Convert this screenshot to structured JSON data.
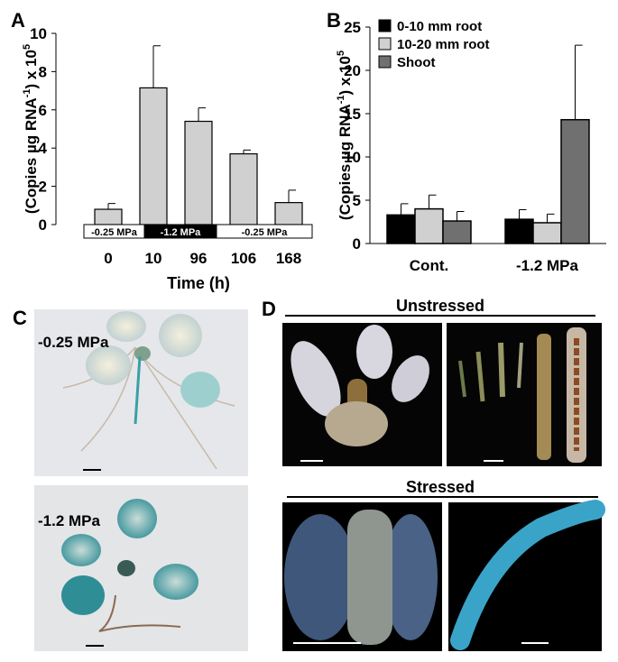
{
  "chart_data": [
    {
      "type": "bar",
      "panel": "A",
      "y_label": [
        "(Copies  µg RNA",
        "-1",
        ") x 10",
        "5"
      ],
      "x_label": "Time (h)",
      "categories": [
        "0",
        "10",
        "96",
        "106",
        "168"
      ],
      "values": [
        0.8,
        7.15,
        5.4,
        3.7,
        1.15
      ],
      "errors": [
        0.3,
        2.2,
        0.7,
        0.2,
        0.65
      ],
      "color": "#d0d0d0",
      "treatments": [
        "-0.25 MPa",
        "-1.2 MPa",
        "-0.25 MPa"
      ],
      "ylim": [
        0,
        10
      ],
      "yticks": [
        0,
        2,
        4,
        6,
        8,
        10
      ]
    },
    {
      "type": "grouped-bar",
      "panel": "B",
      "y_label": [
        "(Copies  µg RNA",
        "-1",
        ") x 10",
        "5"
      ],
      "categories": [
        "Cont.",
        "-1.2 MPa"
      ],
      "series": [
        {
          "name": "0-10 mm root",
          "color": "#000000",
          "values": [
            3.3,
            2.8
          ],
          "errors": [
            1.3,
            1.1
          ]
        },
        {
          "name": "10-20 mm root",
          "color": "#d0d0d0",
          "values": [
            4.0,
            2.4
          ],
          "errors": [
            1.6,
            1.0
          ]
        },
        {
          "name": "Shoot",
          "color": "#707070",
          "values": [
            2.6,
            14.3
          ],
          "errors": [
            1.1,
            8.6
          ]
        }
      ],
      "legend": "top-left",
      "ylim": [
        0,
        25
      ],
      "yticks": [
        0,
        5,
        10,
        15,
        20,
        25
      ]
    }
  ],
  "photos": {
    "C": {
      "panel": "C",
      "labels": [
        "-0.25 MPa",
        "-1.2 MPa"
      ]
    },
    "D": {
      "panel": "D",
      "headers": [
        "Unstressed",
        "Stressed"
      ]
    }
  }
}
